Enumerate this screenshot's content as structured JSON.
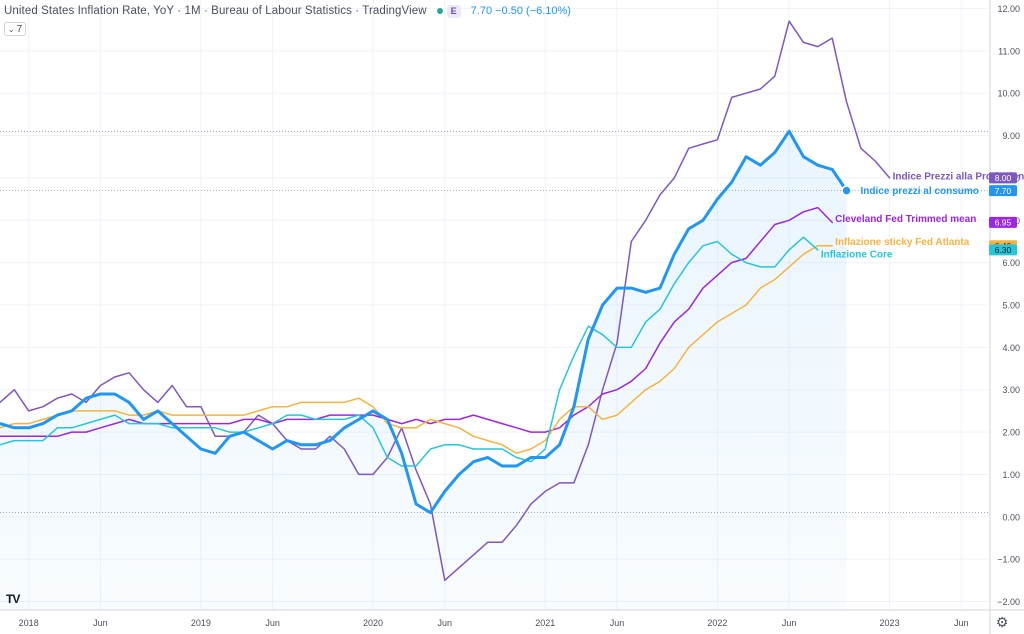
{
  "header": {
    "title": "United States Inflation Rate, YoY · 1M · Bureau of Labour Statistics · TradingView",
    "badge": "E",
    "quote": "7.70  −0.50 (−6.10%)",
    "collapse_label": "7"
  },
  "toolbar": {
    "settings_icon": "gear-icon",
    "logo": "TV"
  },
  "chart_data": {
    "type": "line",
    "y_axis": {
      "ylim": [
        -2.2,
        12.2
      ],
      "position": "right",
      "ticks": [
        "−2.00",
        "−1.00",
        "0.00",
        "1.00",
        "2.00",
        "3.00",
        "4.00",
        "5.00",
        "6.00",
        "7.00",
        "8.00",
        "9.00",
        "10.00",
        "11.00",
        "12.00"
      ],
      "tick_values": [
        -2,
        -1,
        0,
        1,
        2,
        3,
        4,
        5,
        6,
        7,
        8,
        9,
        10,
        11,
        12
      ]
    },
    "x_axis": {
      "start": "2017-11",
      "end": "2023-08",
      "tick_labels": [
        {
          "label": "2018",
          "date": "2018-01"
        },
        {
          "label": "Jun",
          "date": "2018-06"
        },
        {
          "label": "2019",
          "date": "2019-01"
        },
        {
          "label": "Jun",
          "date": "2019-06"
        },
        {
          "label": "2020",
          "date": "2020-01"
        },
        {
          "label": "Jun",
          "date": "2020-06"
        },
        {
          "label": "2021",
          "date": "2021-01"
        },
        {
          "label": "Jun",
          "date": "2021-06"
        },
        {
          "label": "2022",
          "date": "2022-01"
        },
        {
          "label": "Jun",
          "date": "2022-06"
        },
        {
          "label": "2023",
          "date": "2023-01"
        },
        {
          "label": "Jun",
          "date": "2023-06"
        }
      ]
    },
    "reference_lines": [
      9.1,
      7.7,
      0.1
    ],
    "series_start": "2017-11",
    "series": [
      {
        "name": "Indice Prezzi alla Produzione",
        "color": "#7e57c2",
        "width": 1.5,
        "last_value": "8.00",
        "values": [
          2.7,
          3.0,
          2.5,
          2.6,
          2.8,
          2.9,
          2.7,
          3.1,
          3.3,
          3.4,
          3.0,
          2.7,
          3.1,
          2.6,
          2.6,
          1.9,
          1.9,
          2.0,
          2.4,
          2.2,
          1.8,
          1.6,
          1.6,
          1.9,
          1.6,
          1.0,
          1.0,
          1.4,
          2.1,
          1.1,
          0.3,
          -1.5,
          -1.2,
          -0.9,
          -0.6,
          -0.6,
          -0.2,
          0.3,
          0.6,
          0.8,
          0.8,
          1.7,
          3.0,
          4.1,
          6.5,
          7.0,
          7.6,
          8.0,
          8.7,
          8.8,
          8.9,
          9.9,
          10.0,
          10.1,
          10.4,
          11.7,
          11.2,
          11.1,
          11.3,
          9.8,
          8.7,
          8.4,
          8.0
        ]
      },
      {
        "name": "Indice prezzi al consumo",
        "color": "#2196f3",
        "width": 3,
        "last_value": "7.70",
        "values": [
          2.2,
          2.1,
          2.1,
          2.2,
          2.4,
          2.5,
          2.8,
          2.9,
          2.9,
          2.7,
          2.3,
          2.5,
          2.2,
          1.9,
          1.6,
          1.5,
          1.9,
          2.0,
          1.8,
          1.6,
          1.8,
          1.7,
          1.7,
          1.8,
          2.1,
          2.3,
          2.5,
          2.3,
          1.5,
          0.3,
          0.1,
          0.6,
          1.0,
          1.3,
          1.4,
          1.2,
          1.2,
          1.4,
          1.4,
          1.7,
          2.6,
          4.2,
          5.0,
          5.4,
          5.4,
          5.3,
          5.4,
          6.2,
          6.8,
          7.0,
          7.5,
          7.9,
          8.5,
          8.3,
          8.6,
          9.1,
          8.5,
          8.3,
          8.2,
          7.7
        ]
      },
      {
        "name": "Cleveland Fed Trimmed mean",
        "color": "#9c27e0",
        "width": 1.5,
        "last_value": "6.95",
        "values": [
          1.9,
          1.9,
          1.9,
          1.9,
          1.9,
          2.0,
          2.0,
          2.1,
          2.2,
          2.3,
          2.2,
          2.2,
          2.2,
          2.2,
          2.2,
          2.2,
          2.2,
          2.3,
          2.3,
          2.2,
          2.3,
          2.3,
          2.3,
          2.4,
          2.4,
          2.4,
          2.4,
          2.3,
          2.2,
          2.3,
          2.2,
          2.3,
          2.3,
          2.4,
          2.3,
          2.2,
          2.1,
          2.0,
          2.0,
          2.1,
          2.4,
          2.6,
          2.9,
          3.0,
          3.2,
          3.5,
          4.1,
          4.6,
          4.9,
          5.4,
          5.7,
          6.0,
          6.1,
          6.5,
          6.9,
          7.0,
          7.2,
          7.3,
          6.95
        ]
      },
      {
        "name": "Inflazione sticky Fed Atlanta",
        "color": "#f5b342",
        "width": 1.5,
        "last_value": "6.40",
        "values": [
          2.1,
          2.2,
          2.2,
          2.3,
          2.4,
          2.5,
          2.5,
          2.5,
          2.5,
          2.4,
          2.4,
          2.5,
          2.4,
          2.4,
          2.4,
          2.4,
          2.4,
          2.4,
          2.5,
          2.6,
          2.6,
          2.7,
          2.7,
          2.7,
          2.7,
          2.8,
          2.6,
          2.2,
          2.1,
          2.1,
          2.3,
          2.2,
          2.1,
          1.9,
          1.8,
          1.7,
          1.5,
          1.6,
          1.8,
          2.3,
          2.6,
          2.6,
          2.3,
          2.4,
          2.7,
          3.0,
          3.2,
          3.5,
          4.0,
          4.3,
          4.6,
          4.8,
          5.0,
          5.4,
          5.6,
          5.9,
          6.2,
          6.4,
          6.4
        ]
      },
      {
        "name": "Inflazione Core",
        "color": "#26c6da",
        "width": 1.5,
        "last_value": "6.30",
        "values": [
          1.7,
          1.8,
          1.8,
          1.8,
          2.1,
          2.1,
          2.2,
          2.3,
          2.4,
          2.2,
          2.2,
          2.2,
          2.1,
          2.1,
          2.1,
          2.1,
          2.0,
          2.0,
          2.1,
          2.2,
          2.4,
          2.4,
          2.3,
          2.3,
          2.3,
          2.4,
          2.1,
          1.4,
          1.2,
          1.2,
          1.6,
          1.7,
          1.7,
          1.6,
          1.6,
          1.6,
          1.4,
          1.3,
          1.6,
          3.0,
          3.8,
          4.5,
          4.3,
          4.0,
          4.0,
          4.6,
          4.9,
          5.5,
          6.0,
          6.4,
          6.5,
          6.2,
          6.0,
          5.9,
          5.9,
          6.3,
          6.6,
          6.3
        ]
      }
    ]
  }
}
